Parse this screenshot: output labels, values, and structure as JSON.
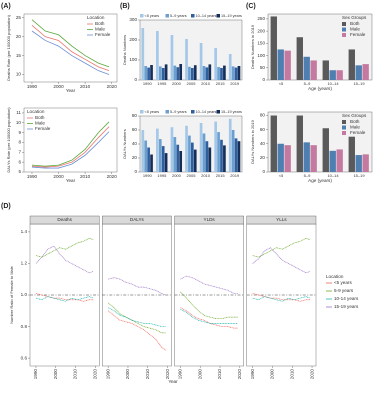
{
  "chart_data": [
    {
      "type": "line",
      "panel": "(A)",
      "ylabel": "Deaths Rate (per 100000 population)",
      "xlabel": "Year",
      "x": [
        1990,
        1995,
        2000,
        2005,
        2010,
        2015,
        2019
      ],
      "xlim": [
        1987,
        2022
      ],
      "xticks": [
        1990,
        2000,
        2010,
        2020
      ],
      "ylim": [
        8,
        26
      ],
      "yticks": [
        10,
        15,
        20,
        25
      ],
      "legend_title": "Location",
      "legend": "upper right",
      "series": [
        {
          "name": "Both",
          "color": "#e8766e",
          "values": [
            23,
            20,
            19,
            16,
            14,
            12,
            11
          ]
        },
        {
          "name": "Male",
          "color": "#5aa83a",
          "values": [
            24.5,
            21.5,
            20.5,
            17.5,
            15,
            13,
            12
          ]
        },
        {
          "name": "Female",
          "color": "#6c8fd6",
          "values": [
            21.5,
            19,
            17.5,
            15,
            13,
            11,
            10
          ]
        }
      ]
    },
    {
      "type": "line",
      "ylabel": "DALYs Rate (per 100000 population)",
      "xlabel": "Year",
      "x": [
        1990,
        1995,
        2000,
        2005,
        2010,
        2015,
        2019
      ],
      "xlim": [
        1987,
        2022
      ],
      "xticks": [
        1990,
        2000,
        2010,
        2020
      ],
      "ylim": [
        5,
        11.5
      ],
      "yticks": [
        5,
        6,
        7,
        8,
        9,
        10,
        11
      ],
      "legend_title": "Location",
      "legend": "upper left",
      "series": [
        {
          "name": "Both",
          "color": "#e8766e",
          "values": [
            5.6,
            5.5,
            5.6,
            6.0,
            7.0,
            8.5,
            9.6
          ]
        },
        {
          "name": "Male",
          "color": "#5aa83a",
          "values": [
            5.7,
            5.6,
            5.7,
            6.2,
            7.3,
            9.0,
            10.1
          ]
        },
        {
          "name": "Female",
          "color": "#6c8fd6",
          "values": [
            5.5,
            5.4,
            5.4,
            5.8,
            6.7,
            8.0,
            9.1
          ]
        }
      ]
    },
    {
      "type": "bar",
      "panel": "(B)",
      "ylabel": "Deaths Numbers",
      "categories": [
        "1990",
        "1995",
        "2000",
        "2005",
        "2010",
        "2015",
        "2019"
      ],
      "ylim": [
        0,
        300
      ],
      "yticks": [
        0,
        100,
        200,
        300
      ],
      "legend": "top",
      "series": [
        {
          "name": "<5 years",
          "color": "#a6c8e8",
          "values": [
            260,
            245,
            225,
            205,
            185,
            160,
            130
          ]
        },
        {
          "name": "5–9 years",
          "color": "#6a9fd0",
          "values": [
            70,
            68,
            72,
            66,
            70,
            65,
            68
          ]
        },
        {
          "name": "10–14 years",
          "color": "#2f5f9e",
          "values": [
            62,
            60,
            64,
            60,
            63,
            60,
            62
          ]
        },
        {
          "name": "15–19 years",
          "color": "#162f5a",
          "values": [
            75,
            78,
            80,
            74,
            78,
            72,
            70
          ]
        }
      ]
    },
    {
      "type": "bar",
      "ylabel": "DALYs Numbers",
      "categories": [
        "1990",
        "1995",
        "2000",
        "2005",
        "2010",
        "2015",
        "2019"
      ],
      "ylim": [
        0,
        80
      ],
      "yticks": [
        0,
        20,
        40,
        60,
        80
      ],
      "legend": "top",
      "series": [
        {
          "name": "<5 years",
          "color": "#a6c8e8",
          "values": [
            60,
            62,
            64,
            66,
            70,
            72,
            76
          ]
        },
        {
          "name": "5–9 years",
          "color": "#6a9fd0",
          "values": [
            45,
            47,
            50,
            52,
            55,
            57,
            60
          ]
        },
        {
          "name": "10–14 years",
          "color": "#2f5f9e",
          "values": [
            35,
            37,
            39,
            42,
            44,
            46,
            48
          ]
        },
        {
          "name": "15–19 years",
          "color": "#162f5a",
          "values": [
            25,
            27,
            30,
            32,
            35,
            38,
            44
          ]
        }
      ]
    },
    {
      "type": "bar",
      "panel": "(C)",
      "ylabel": "Deaths Numbers in 2019",
      "xlabel": "Age (years)",
      "categories": [
        "<5",
        "5–9",
        "10–14",
        "15–19"
      ],
      "ylim": [
        0,
        270
      ],
      "yticks": [
        0,
        50,
        100,
        150,
        200,
        250
      ],
      "legend_title": "Sex Groups",
      "legend": "upper right",
      "series": [
        {
          "name": "Both",
          "color": "#5a5a5a",
          "values": [
            260,
            175,
            80,
            125
          ]
        },
        {
          "name": "Male",
          "color": "#4f7fb0",
          "values": [
            125,
            95,
            40,
            60
          ]
        },
        {
          "name": "Female",
          "color": "#c47aa0",
          "values": [
            120,
            80,
            40,
            65
          ]
        }
      ]
    },
    {
      "type": "bar",
      "ylabel": "DALYs Numbers in 2019",
      "xlabel": "Age (years)",
      "categories": [
        "<5",
        "5–9",
        "10–14",
        "15–19"
      ],
      "ylim": [
        0,
        85
      ],
      "yticks": [
        0,
        20,
        40,
        60,
        80
      ],
      "legend_title": "Sex Groups",
      "legend": "upper right",
      "series": [
        {
          "name": "Both",
          "color": "#5a5a5a",
          "values": [
            80,
            80,
            62,
            50
          ]
        },
        {
          "name": "Male",
          "color": "#4f7fb0",
          "values": [
            40,
            42,
            30,
            24
          ]
        },
        {
          "name": "Female",
          "color": "#c47aa0",
          "values": [
            38,
            38,
            32,
            25
          ]
        }
      ]
    },
    {
      "type": "facet_line",
      "panel": "(D)",
      "ylabel": "Number Ratio of Female to Male",
      "xlabel": "Year",
      "x": [
        1990,
        1993,
        1996,
        1999,
        2002,
        2005,
        2008,
        2011,
        2014,
        2017,
        2019
      ],
      "xlim": [
        1987,
        2022
      ],
      "xticks": [
        1990,
        2000,
        2010,
        2020
      ],
      "ylim": [
        0.55,
        1.45
      ],
      "yticks": [
        0.6,
        0.8,
        {
          "value": 1,
          "label": "1.0"
        },
        1.2,
        1.4
      ],
      "hline": 1,
      "legend_title": "Location",
      "legend": "right",
      "series": [
        {
          "name": "<5 years",
          "color": "#f0645a"
        },
        {
          "name": "5-9 years",
          "color": "#6aaa2a"
        },
        {
          "name": "10-14 years",
          "color": "#1fb5b0"
        },
        {
          "name": "15-19 years",
          "color": "#9b72c8"
        }
      ],
      "facets": [
        {
          "title": "Deaths",
          "values": [
            [
              1.01,
              1.0,
              0.99,
              0.98,
              0.98,
              0.97,
              0.97,
              0.97,
              0.96,
              0.97,
              0.97
            ],
            [
              1.25,
              1.24,
              1.26,
              1.28,
              1.3,
              1.29,
              1.31,
              1.33,
              1.34,
              1.36,
              1.35
            ],
            [
              0.98,
              0.97,
              0.99,
              0.98,
              0.97,
              0.96,
              0.98,
              0.97,
              0.98,
              0.99,
              0.98
            ],
            [
              1.2,
              1.24,
              1.29,
              1.31,
              1.26,
              1.22,
              1.2,
              1.18,
              1.16,
              1.14,
              1.15
            ]
          ]
        },
        {
          "title": "DALYs",
          "values": [
            [
              0.9,
              0.87,
              0.84,
              0.83,
              0.82,
              0.8,
              0.78,
              0.75,
              0.72,
              0.67,
              0.65
            ],
            [
              0.95,
              0.92,
              0.88,
              0.86,
              0.84,
              0.82,
              0.8,
              0.79,
              0.78,
              0.76,
              0.76
            ],
            [
              0.92,
              0.9,
              0.87,
              0.86,
              0.84,
              0.83,
              0.82,
              0.82,
              0.81,
              0.8,
              0.8
            ],
            [
              1.1,
              1.11,
              1.1,
              1.08,
              1.07,
              1.05,
              1.05,
              1.04,
              1.03,
              1.01,
              1.0
            ]
          ]
        },
        {
          "title": "YLDs",
          "values": [
            [
              0.92,
              0.9,
              0.87,
              0.85,
              0.84,
              0.82,
              0.81,
              0.8,
              0.8,
              0.79,
              0.79
            ],
            [
              1.02,
              0.98,
              0.94,
              0.9,
              0.87,
              0.86,
              0.85,
              0.85,
              0.86,
              0.86,
              0.86
            ],
            [
              0.91,
              0.89,
              0.86,
              0.84,
              0.83,
              0.82,
              0.82,
              0.82,
              0.82,
              0.82,
              0.82
            ],
            [
              1.1,
              1.12,
              1.11,
              1.09,
              1.07,
              1.06,
              1.05,
              1.04,
              1.03,
              1.01,
              1.01
            ]
          ]
        },
        {
          "title": "YLLs",
          "values": [
            [
              1.01,
              1.0,
              0.99,
              0.98,
              0.98,
              0.97,
              0.97,
              0.97,
              0.96,
              0.97,
              0.97
            ],
            [
              1.25,
              1.24,
              1.26,
              1.28,
              1.3,
              1.29,
              1.31,
              1.33,
              1.34,
              1.36,
              1.35
            ],
            [
              0.98,
              0.97,
              0.99,
              0.98,
              0.97,
              0.96,
              0.98,
              0.97,
              0.98,
              0.99,
              0.98
            ],
            [
              1.2,
              1.23,
              1.28,
              1.3,
              1.26,
              1.22,
              1.2,
              1.18,
              1.16,
              1.14,
              1.15
            ]
          ]
        }
      ]
    }
  ]
}
